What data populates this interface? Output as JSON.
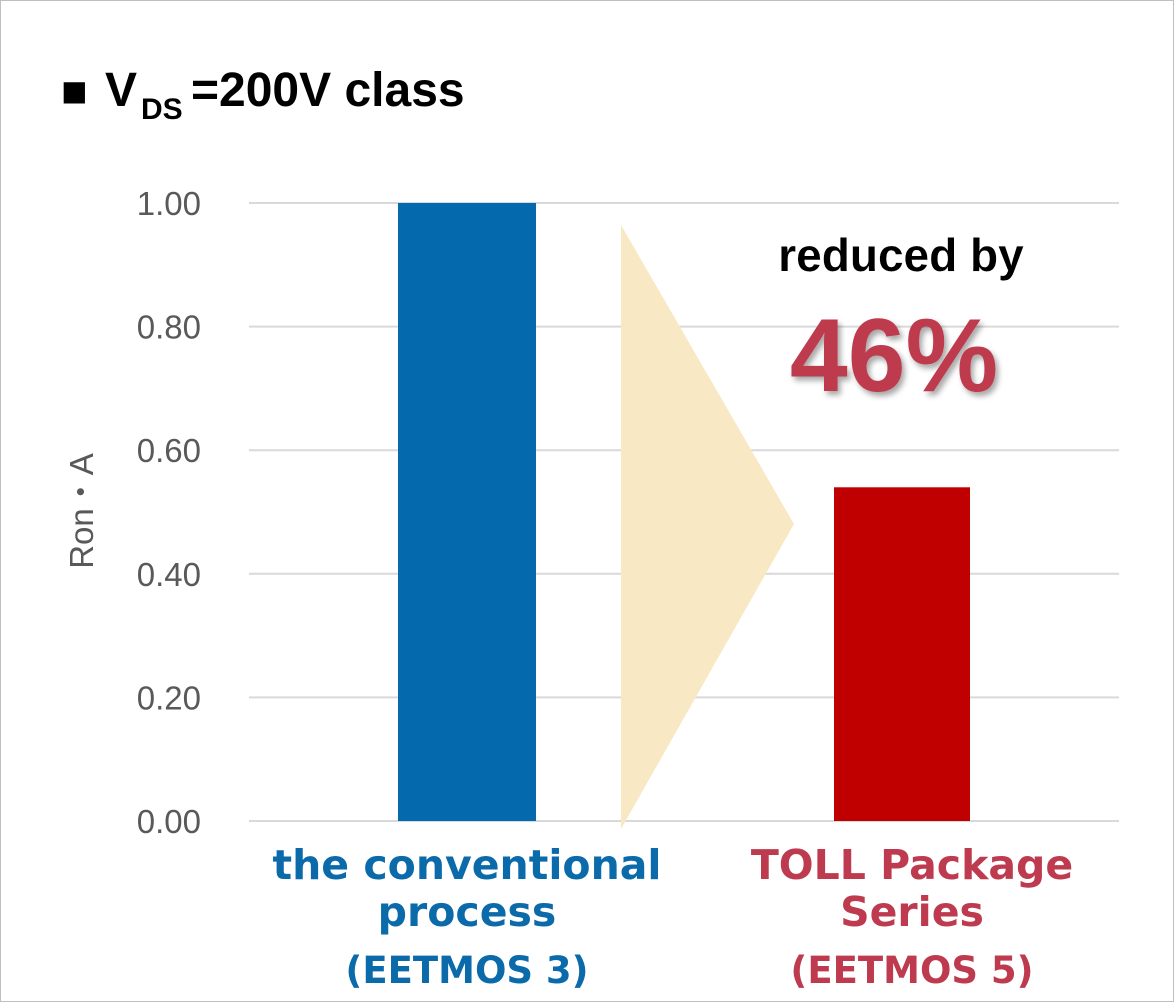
{
  "chart_data": {
    "type": "bar",
    "title": {
      "marker": "■",
      "prefix": "V",
      "subscript": "DS",
      "suffix": "=200V class"
    },
    "ylabel": "Ron・A",
    "ylim": [
      0,
      1.0
    ],
    "yticks": [
      "0.00",
      "0.20",
      "0.40",
      "0.60",
      "0.80",
      "1.00"
    ],
    "ytick_values": [
      0,
      0.2,
      0.4,
      0.6,
      0.8,
      1.0
    ],
    "grid": true,
    "categories": [
      {
        "lines": [
          "the conventional",
          "process",
          "(EETMOS 3)"
        ],
        "color": "#0a6aaa"
      },
      {
        "lines": [
          "TOLL Package",
          "Series",
          "(EETMOS 5)"
        ],
        "color": "#be3a4e"
      }
    ],
    "values": [
      1.0,
      0.54
    ],
    "bar_colors": [
      "#0569ad",
      "#c00000"
    ],
    "annotation": {
      "text": "reduced by",
      "value": "46%",
      "value_color": "#be3a4e",
      "arrow_color": "#f8e9c4"
    }
  }
}
